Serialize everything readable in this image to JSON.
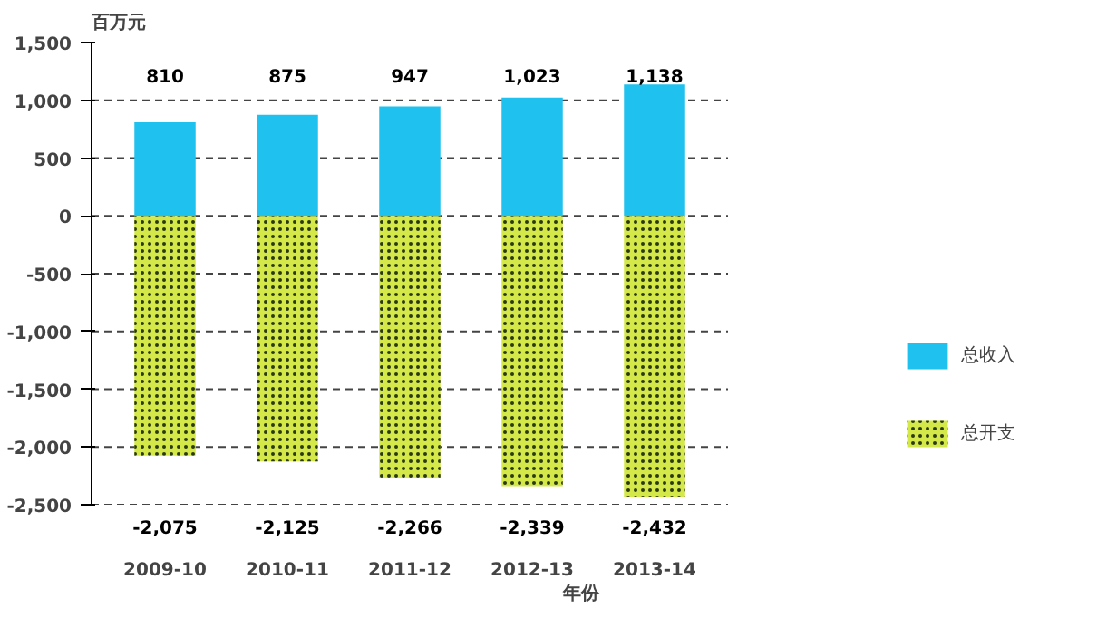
{
  "chart_data": {
    "type": "bar",
    "stacked": true,
    "ylabel": "百万元",
    "xlabel": "年份",
    "categories": [
      "2009-10",
      "2010-11",
      "2011-12",
      "2012-13",
      "2013-14"
    ],
    "series": [
      {
        "name": "总收入",
        "color": "#1fc1ee",
        "values": [
          810,
          875,
          947,
          1023,
          1138
        ],
        "value_labels": [
          "810",
          "875",
          "947",
          "1,023",
          "1,138"
        ]
      },
      {
        "name": "总开支",
        "color": "#d4e84a",
        "values": [
          -2075,
          -2125,
          -2266,
          -2339,
          -2432
        ],
        "value_labels": [
          "-2,075",
          "-2,125",
          "-2,266",
          "-2,339",
          "-2,432"
        ]
      }
    ],
    "ylim": [
      -2500,
      1500
    ],
    "yticks": [
      {
        "value": -2500,
        "label": "-2,500"
      },
      {
        "value": -2000,
        "label": "-2,000"
      },
      {
        "value": -1500,
        "label": "-1,500"
      },
      {
        "value": -1000,
        "label": "-1,000"
      },
      -500,
      0,
      500,
      {
        "value": 1000,
        "label": "1,000"
      },
      {
        "value": 1500,
        "label": "1,500"
      }
    ],
    "grid": "y",
    "legend": "right"
  }
}
